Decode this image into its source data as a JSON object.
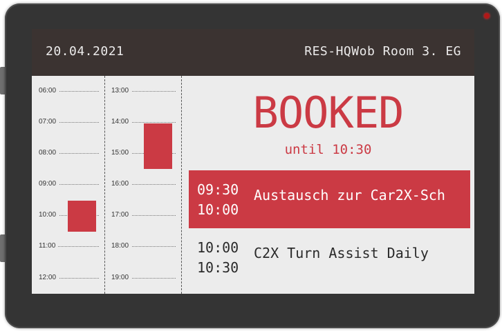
{
  "header": {
    "date": "20.04.2021",
    "room": "RES-HQWob Room 3. EG"
  },
  "schedule": {
    "col1": [
      "06:00",
      "07:00",
      "08:00",
      "09:00",
      "10:00",
      "11:00",
      "12:00"
    ],
    "col2": [
      "13:00",
      "14:00",
      "15:00",
      "16:00",
      "17:00",
      "18:00",
      "19:00"
    ]
  },
  "status": {
    "label": "BOOKED",
    "until": "until 10:30"
  },
  "meetings": [
    {
      "start": "09:30",
      "end": "10:00",
      "title": "Austausch zur Car2X-Sch"
    },
    {
      "start": "10:00",
      "end": "10:30",
      "title": "C2X Turn Assist Daily"
    }
  ],
  "colors": {
    "accent": "#cb3a44",
    "header": "#3b3331"
  }
}
